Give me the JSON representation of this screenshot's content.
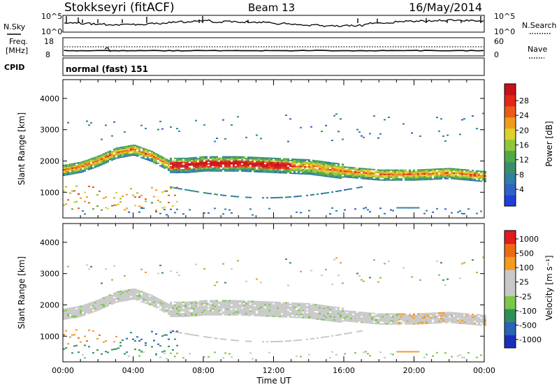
{
  "header": {
    "station": "Stokkseyri (fitACF)",
    "beam": "Beam 13",
    "date": "16/May/2014"
  },
  "noise_panel": {
    "left_label": "N.Sky",
    "right_label": "N.Search",
    "ticks": [
      "10^5",
      "10^0"
    ]
  },
  "freq_panel": {
    "left_label_1": "Freq.",
    "left_label_2": "[MHz]",
    "left_ticks": [
      "18",
      "8"
    ],
    "right_label": "Nave",
    "right_ticks": [
      "60",
      "0"
    ]
  },
  "cpid": {
    "label": "CPID",
    "value": "normal (fast) 151"
  },
  "colors": {
    "power": [
      "#1f3fd6",
      "#2f62c8",
      "#2e7fa6",
      "#3a8f6a",
      "#52a848",
      "#8fc63a",
      "#ddd12a",
      "#f09a1e",
      "#ec5a18",
      "#e2261a",
      "#c8101a"
    ],
    "velocity": [
      "#e01c1c",
      "#ec6a14",
      "#f29a22",
      "#c8c8c8",
      "#c8c8c8",
      "#7ac84a",
      "#2f8f5a",
      "#2a62b8",
      "#1a2fb8"
    ]
  },
  "chart_data": [
    {
      "type": "heatmap",
      "panel": "power",
      "ylabel": "Slant Range [km]",
      "yticks": [
        "4000",
        "3000",
        "2000",
        "1000"
      ],
      "ylim": [
        180,
        4600
      ],
      "xticks": [
        "00:00",
        "04:00",
        "08:00",
        "12:00",
        "16:00",
        "20:00",
        "00:00"
      ],
      "colorbar_label": "Power [dB]",
      "colorbar_ticks": [
        "28",
        "24",
        "20",
        "16",
        "12",
        "8",
        "4"
      ],
      "colorbar_range": [
        0,
        30
      ],
      "echo_band_center_km": {
        "hours": [
          0,
          1,
          2,
          3,
          4,
          5,
          6,
          7,
          8,
          10,
          12,
          14,
          16,
          18,
          20,
          22,
          24
        ],
        "range_km": [
          1700,
          1800,
          2000,
          2250,
          2350,
          2150,
          1850,
          1850,
          1900,
          1900,
          1850,
          1800,
          1650,
          1550,
          1550,
          1600,
          1500
        ]
      }
    },
    {
      "type": "heatmap",
      "panel": "velocity",
      "ylabel": "Slant Range [km]",
      "yticks": [
        "4000",
        "3000",
        "2000",
        "1000"
      ],
      "ylim": [
        180,
        4600
      ],
      "xticks": [
        "00:00",
        "04:00",
        "08:00",
        "12:00",
        "16:00",
        "20:00",
        "00:00"
      ],
      "xlabel": "Time UT",
      "colorbar_label": "Velocity [m s⁻¹]",
      "colorbar_ticks": [
        "1000",
        "500",
        "100",
        "25",
        "-25",
        "-100",
        "-500",
        "-1000"
      ]
    }
  ]
}
